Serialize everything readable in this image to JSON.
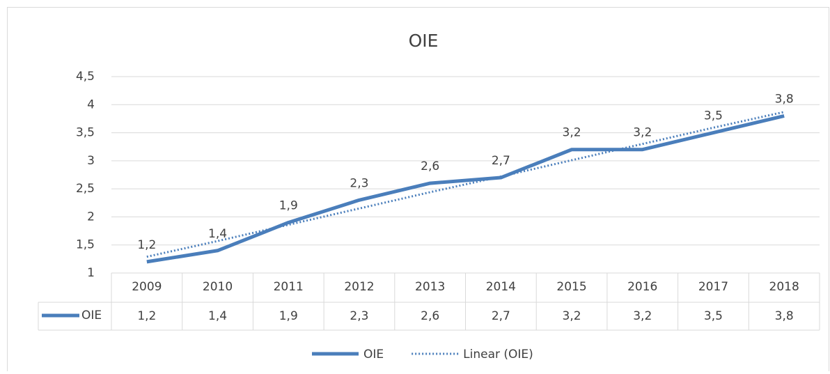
{
  "chart_data": {
    "type": "line",
    "title": "OIE",
    "categories": [
      "2009",
      "2010",
      "2011",
      "2012",
      "2013",
      "2014",
      "2015",
      "2016",
      "2017",
      "2018"
    ],
    "series": [
      {
        "name": "OIE",
        "color": "#4a7ebb",
        "values": [
          1.2,
          1.4,
          1.9,
          2.3,
          2.6,
          2.7,
          3.2,
          3.2,
          3.5,
          3.8
        ],
        "value_labels": [
          "1,2",
          "1,4",
          "1,9",
          "2,3",
          "2,6",
          "2,7",
          "3,2",
          "3,2",
          "3,5",
          "3,8"
        ]
      },
      {
        "name": "Linear (OIE)",
        "color": "#4a7ebb",
        "dotted": true,
        "values": [
          1.29,
          1.57,
          1.86,
          2.15,
          2.44,
          2.72,
          3.01,
          3.3,
          3.59,
          3.87
        ]
      }
    ],
    "ylim": [
      1,
      4.5
    ],
    "yticks": [
      1,
      {
        "value": 1.5,
        "label": "1,5"
      },
      2,
      {
        "value": 2.5,
        "label": "2,5"
      },
      3,
      {
        "value": 3.5,
        "label": "3,5"
      },
      4,
      {
        "value": 4.5,
        "label": "4,5"
      }
    ],
    "grid": true,
    "legend": "bottom",
    "data_table": true
  }
}
